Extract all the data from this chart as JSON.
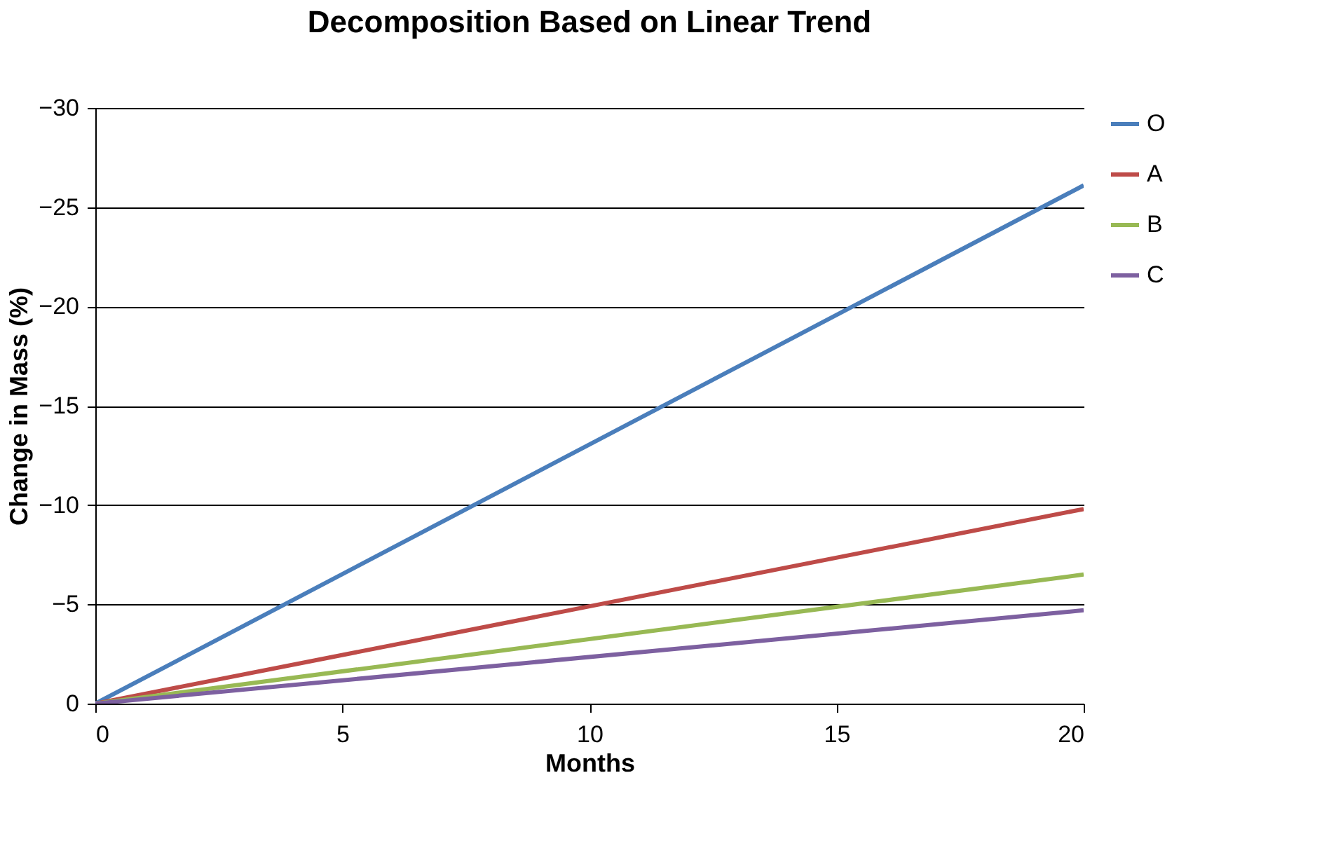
{
  "chart_data": {
    "type": "line",
    "title": "Decomposition Based on Linear Trend",
    "xlabel": "Months",
    "ylabel": "Change in Mass (%)",
    "x": [
      0,
      20
    ],
    "series": [
      {
        "name": "O",
        "color": "#4a7ebb",
        "values": [
          0,
          -26.1
        ]
      },
      {
        "name": "A",
        "color": "#be4b48",
        "values": [
          0,
          -9.8
        ]
      },
      {
        "name": "B",
        "color": "#98b954",
        "values": [
          0,
          -6.5
        ]
      },
      {
        "name": "C",
        "color": "#7d60a0",
        "values": [
          0,
          -4.7
        ]
      }
    ],
    "xlim": [
      0,
      20
    ],
    "xticks": [
      0,
      5,
      10,
      15,
      20
    ],
    "ylim": [
      0,
      -30
    ],
    "yticks": [
      0,
      -5,
      -10,
      -15,
      -20,
      -25,
      -30
    ],
    "grid": "y",
    "legend": "right",
    "marker": "none",
    "line_style": "solid"
  }
}
